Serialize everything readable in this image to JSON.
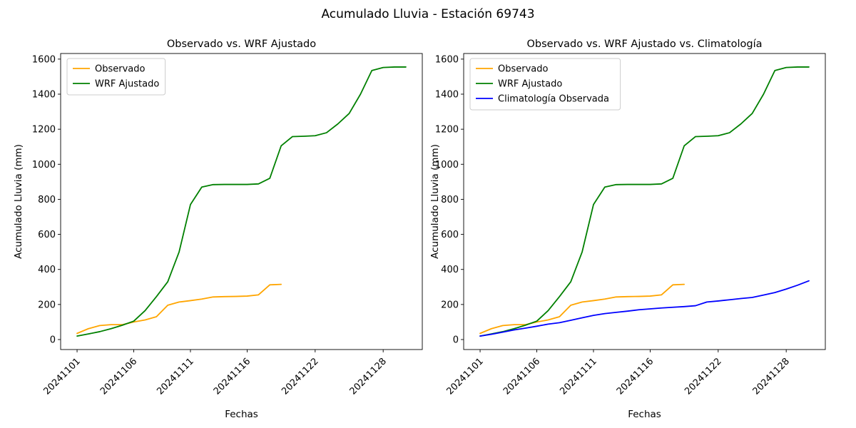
{
  "figure": {
    "suptitle": "Acumulado Lluvia - Estación 69743"
  },
  "chart_data": [
    {
      "type": "line",
      "title": "Observado vs. WRF Ajustado",
      "xlabel": "Fechas",
      "ylabel": "Acumulado Lluvia (mm)",
      "ylim": [
        0,
        1600
      ],
      "yticks": [
        0,
        200,
        400,
        600,
        800,
        1000,
        1200,
        1400,
        1600
      ],
      "grid": false,
      "legend_position": "upper left",
      "categories": [
        "20241101",
        "20241102",
        "20241103",
        "20241104",
        "20241105",
        "20241106",
        "20241107",
        "20241108",
        "20241109",
        "20241110",
        "20241111",
        "20241112",
        "20241113",
        "20241114",
        "20241115",
        "20241116",
        "20241117",
        "20241118",
        "20241119",
        "20241120",
        "20241121",
        "20241122",
        "20241123",
        "20241124",
        "20241125",
        "20241126",
        "20241127",
        "20241128",
        "20241129",
        "20241130"
      ],
      "xtick_indices": [
        0,
        5,
        10,
        15,
        21,
        27
      ],
      "xtick_labels": [
        "20241101",
        "20241106",
        "20241111",
        "20241116",
        "20241122",
        "20241128"
      ],
      "series": [
        {
          "name": "Observado",
          "color": "#ffa500",
          "values": [
            35,
            62,
            80,
            85,
            85,
            100,
            112,
            130,
            196,
            214,
            222,
            231,
            243,
            245,
            246,
            248,
            255,
            312,
            315
          ]
        },
        {
          "name": "WRF Ajustado",
          "color": "#008000",
          "values": [
            20,
            32,
            45,
            62,
            82,
            105,
            165,
            245,
            330,
            500,
            770,
            870,
            884,
            885,
            885,
            885,
            888,
            920,
            1105,
            1158,
            1160,
            1163,
            1180,
            1230,
            1290,
            1400,
            1535,
            1552,
            1555,
            1555
          ]
        }
      ]
    },
    {
      "type": "line",
      "title": "Observado vs. WRF Ajustado vs. Climatología",
      "xlabel": "Fechas",
      "ylabel": "Acumulado Lluvia (mm)",
      "ylim": [
        0,
        1600
      ],
      "yticks": [
        0,
        200,
        400,
        600,
        800,
        1000,
        1200,
        1400,
        1600
      ],
      "grid": false,
      "legend_position": "upper left",
      "categories": [
        "20241101",
        "20241102",
        "20241103",
        "20241104",
        "20241105",
        "20241106",
        "20241107",
        "20241108",
        "20241109",
        "20241110",
        "20241111",
        "20241112",
        "20241113",
        "20241114",
        "20241115",
        "20241116",
        "20241117",
        "20241118",
        "20241119",
        "20241120",
        "20241121",
        "20241122",
        "20241123",
        "20241124",
        "20241125",
        "20241126",
        "20241127",
        "20241128",
        "20241129",
        "20241130"
      ],
      "xtick_indices": [
        0,
        5,
        10,
        15,
        21,
        27
      ],
      "xtick_labels": [
        "20241101",
        "20241106",
        "20241111",
        "20241116",
        "20241122",
        "20241128"
      ],
      "series": [
        {
          "name": "Observado",
          "color": "#ffa500",
          "values": [
            35,
            62,
            80,
            85,
            85,
            100,
            112,
            130,
            196,
            214,
            222,
            231,
            243,
            245,
            246,
            248,
            255,
            312,
            315
          ]
        },
        {
          "name": "WRF Ajustado",
          "color": "#008000",
          "values": [
            20,
            32,
            45,
            62,
            82,
            105,
            165,
            245,
            330,
            500,
            770,
            870,
            884,
            885,
            885,
            885,
            888,
            920,
            1105,
            1158,
            1160,
            1163,
            1180,
            1230,
            1290,
            1400,
            1535,
            1552,
            1555,
            1555
          ]
        },
        {
          "name": "Climatología Observada",
          "color": "#0000ff",
          "values": [
            20,
            30,
            42,
            55,
            65,
            76,
            88,
            96,
            110,
            124,
            138,
            148,
            155,
            162,
            170,
            175,
            180,
            184,
            188,
            193,
            214,
            220,
            227,
            234,
            240,
            254,
            268,
            288,
            310,
            335
          ]
        }
      ]
    }
  ]
}
